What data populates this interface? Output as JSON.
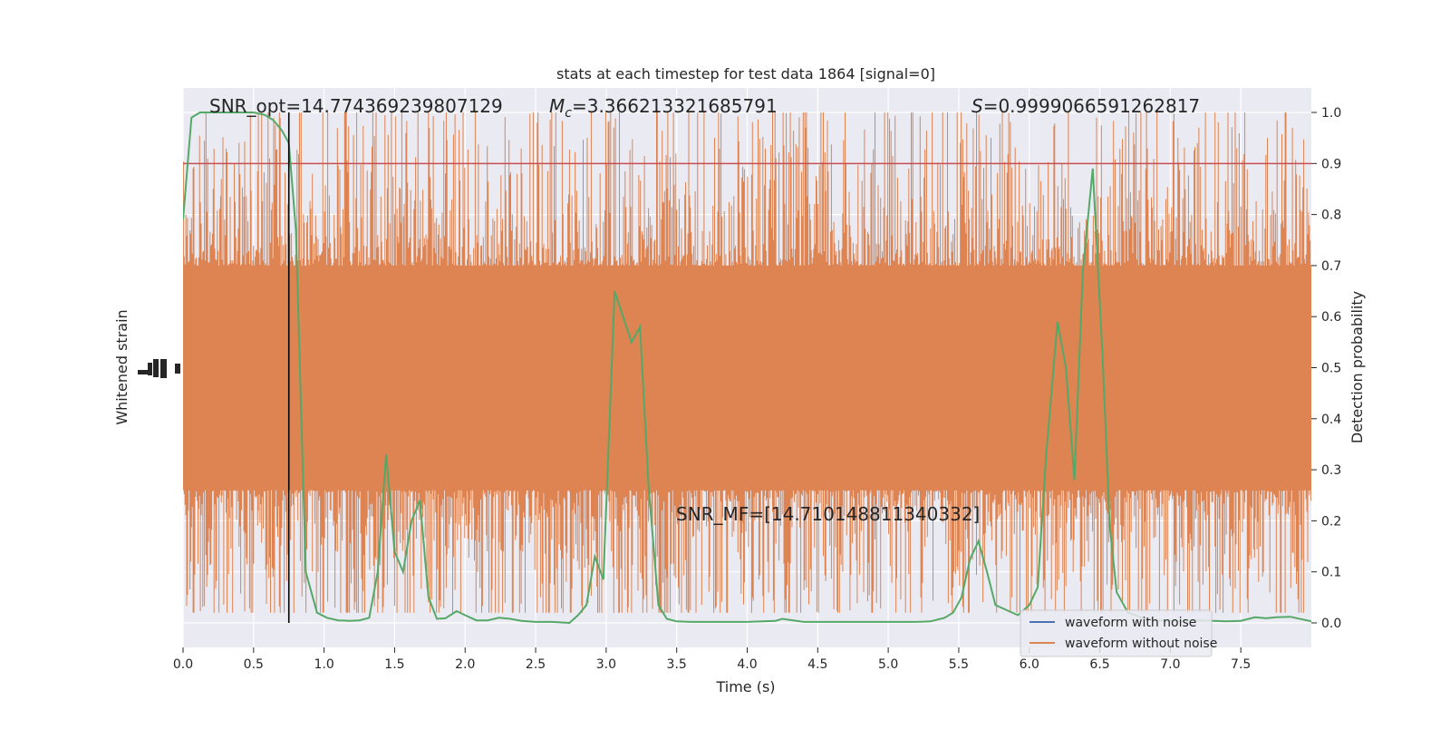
{
  "chart_data": {
    "type": "line",
    "title": "stats at each timestep for test data 1864 [signal=0]",
    "xlabel": "Time (s)",
    "ylabel_left": "Whitened strain",
    "ylabel_right": "Detection probability",
    "xlim": [
      0,
      8
    ],
    "ylim_right": [
      -0.048,
      1.048
    ],
    "x_ticks": [
      "0.0",
      "0.5",
      "1.0",
      "1.5",
      "2.0",
      "2.5",
      "3.0",
      "3.5",
      "4.0",
      "4.5",
      "5.0",
      "5.5",
      "6.0",
      "6.5",
      "7.0",
      "7.5"
    ],
    "y_ticks_right": [
      "0.0",
      "0.1",
      "0.2",
      "0.3",
      "0.4",
      "0.5",
      "0.6",
      "0.7",
      "0.8",
      "0.9",
      "1.0"
    ],
    "grid": true,
    "threshold": 0.9,
    "event_time": 0.75,
    "annotations": {
      "snr_opt": "SNR_opt=14.774369239807129",
      "mc_prefix": "M",
      "mc_sub": "c",
      "mc_value": "=3.366213321685791",
      "s_prefix": "S",
      "s_value": "=0.9999066591262817",
      "snr_mf": "SNR_MF=[14.710148811340332]"
    },
    "legend": {
      "placement": "lower-right",
      "entries": [
        {
          "label": "waveform with noise",
          "color": "#4c72b0"
        },
        {
          "label": "waveform without noise",
          "color": "#dd8452"
        }
      ]
    },
    "series": [
      {
        "name": "detection",
        "color": "#55a868",
        "x": [
          0.0,
          0.06,
          0.12,
          0.2,
          0.3,
          0.4,
          0.5,
          0.58,
          0.64,
          0.7,
          0.75,
          0.8,
          0.87,
          0.95,
          1.02,
          1.1,
          1.18,
          1.25,
          1.32,
          1.38,
          1.44,
          1.5,
          1.56,
          1.62,
          1.68,
          1.74,
          1.8,
          1.86,
          1.94,
          2.0,
          2.08,
          2.16,
          2.24,
          2.32,
          2.4,
          2.5,
          2.62,
          2.74,
          2.8,
          2.86,
          2.92,
          2.98,
          3.06,
          3.12,
          3.18,
          3.24,
          3.3,
          3.37,
          3.43,
          3.5,
          3.6,
          3.8,
          4.0,
          4.2,
          4.25,
          4.4,
          4.6,
          4.8,
          5.0,
          5.2,
          5.3,
          5.4,
          5.46,
          5.52,
          5.58,
          5.64,
          5.7,
          5.76,
          5.84,
          5.92,
          6.0,
          6.06,
          6.12,
          6.2,
          6.26,
          6.32,
          6.38,
          6.45,
          6.52,
          6.57,
          6.62,
          6.7,
          6.8,
          6.9,
          7.0,
          7.1,
          7.2,
          7.3,
          7.4,
          7.5,
          7.6,
          7.68,
          7.75,
          7.85,
          8.0
        ],
        "y": [
          0.79,
          0.99,
          1.0,
          1.0,
          1.0,
          1.0,
          1.0,
          0.995,
          0.985,
          0.965,
          0.94,
          0.77,
          0.1,
          0.02,
          0.01,
          0.005,
          0.004,
          0.005,
          0.01,
          0.1,
          0.33,
          0.14,
          0.1,
          0.2,
          0.24,
          0.05,
          0.008,
          0.009,
          0.023,
          0.015,
          0.005,
          0.005,
          0.01,
          0.008,
          0.004,
          0.002,
          0.002,
          0.0,
          0.015,
          0.035,
          0.13,
          0.085,
          0.65,
          0.6,
          0.55,
          0.58,
          0.27,
          0.035,
          0.008,
          0.003,
          0.002,
          0.002,
          0.002,
          0.004,
          0.008,
          0.002,
          0.002,
          0.002,
          0.002,
          0.002,
          0.003,
          0.01,
          0.02,
          0.05,
          0.125,
          0.16,
          0.1,
          0.035,
          0.025,
          0.015,
          0.035,
          0.07,
          0.33,
          0.59,
          0.5,
          0.28,
          0.69,
          0.89,
          0.52,
          0.19,
          0.06,
          0.02,
          0.01,
          0.005,
          0.004,
          0.004,
          0.005,
          0.004,
          0.003,
          0.004,
          0.011,
          0.009,
          0.011,
          0.012,
          0.003
        ]
      },
      {
        "name": "waveform without noise",
        "color": "#dd8452",
        "band": {
          "center": 0.48,
          "half_width": 0.22
        },
        "spike_max": 1.0,
        "spike_min": 0.02,
        "samples": 1400
      }
    ]
  }
}
